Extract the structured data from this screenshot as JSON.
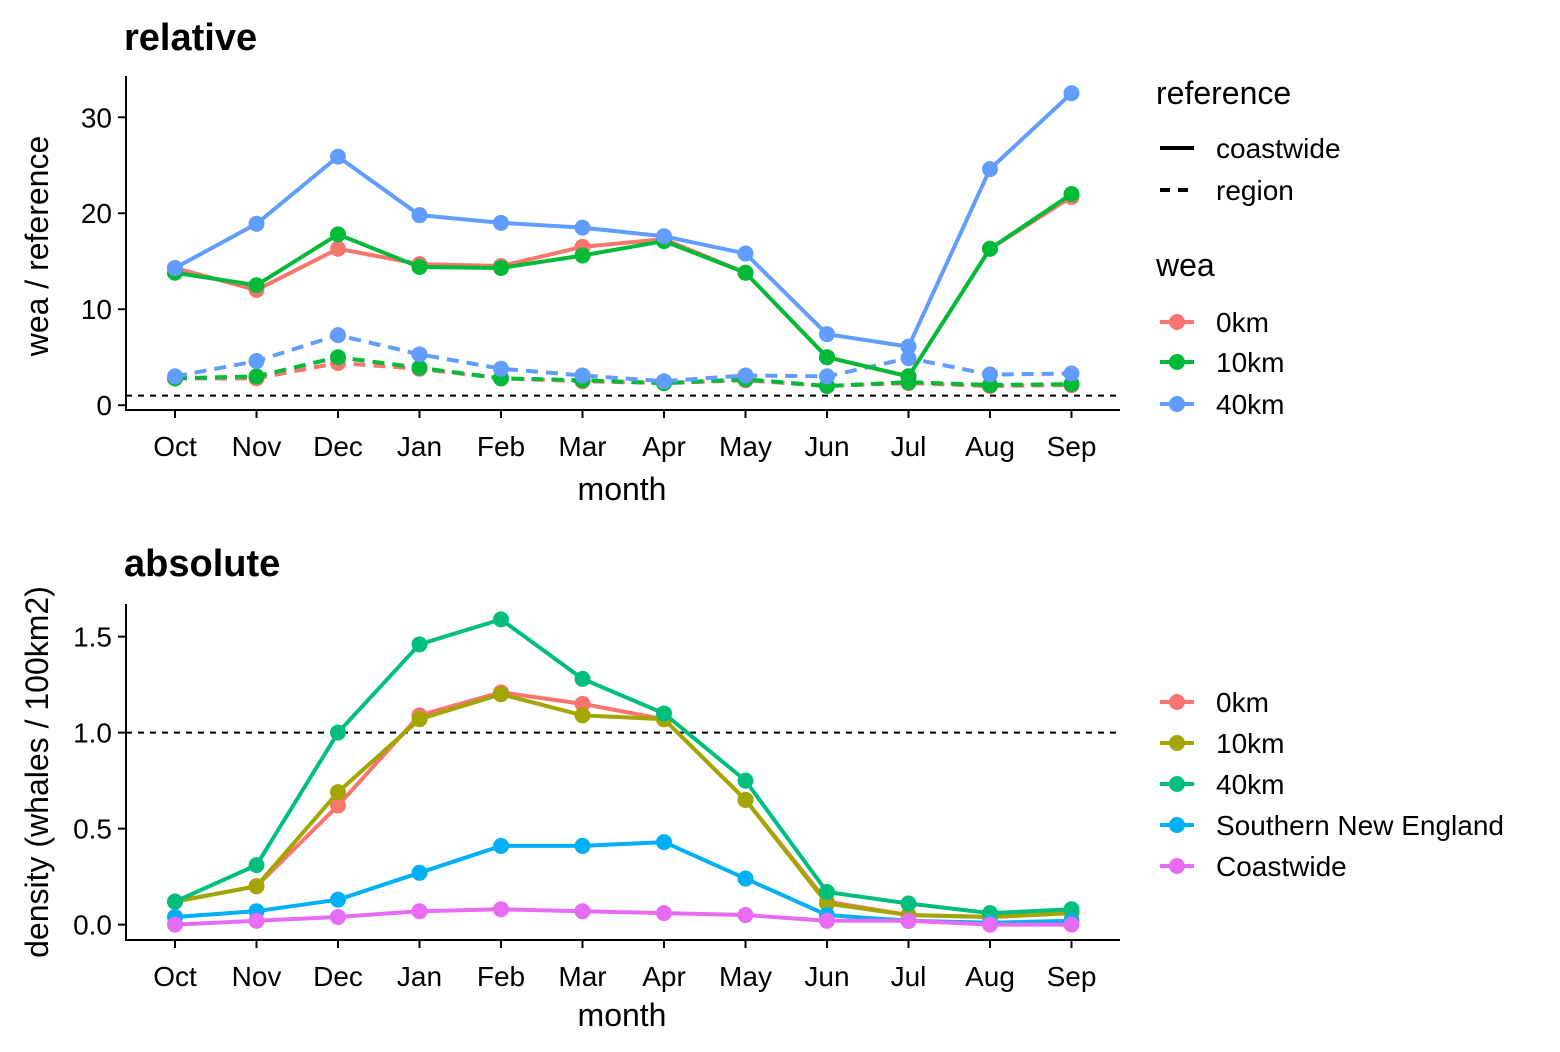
{
  "chart_data": [
    {
      "type": "line",
      "title": "relative",
      "xlabel": "month",
      "ylabel": "wea / reference",
      "categories": [
        "Oct",
        "Nov",
        "Dec",
        "Jan",
        "Feb",
        "Mar",
        "Apr",
        "May",
        "Jun",
        "Jul",
        "Aug",
        "Sep"
      ],
      "ylim": [
        -0.5,
        34.3
      ],
      "yticks": [
        0,
        10,
        20,
        30
      ],
      "reference_line": 1,
      "grid": false,
      "legend_position": "right",
      "linetype_legend": {
        "title": "reference",
        "entries": [
          "coastwide",
          "region"
        ]
      },
      "color_legend": {
        "title": "wea",
        "entries": [
          "0km",
          "10km",
          "40km"
        ]
      },
      "series": [
        {
          "name": "0km",
          "reference": "coastwide",
          "color": "#F8766D",
          "values": [
            14.3,
            12.0,
            16.3,
            14.7,
            14.5,
            16.5,
            17.3,
            13.8,
            5.0,
            3.0,
            16.3,
            21.7
          ]
        },
        {
          "name": "10km",
          "reference": "coastwide",
          "color": "#00BA38",
          "values": [
            13.8,
            12.5,
            17.8,
            14.4,
            14.3,
            15.6,
            17.1,
            13.8,
            5.0,
            3.0,
            16.3,
            22.0
          ]
        },
        {
          "name": "40km",
          "reference": "coastwide",
          "color": "#619CFF",
          "values": [
            14.3,
            18.9,
            25.9,
            19.8,
            19.0,
            18.5,
            17.6,
            15.8,
            7.4,
            6.1,
            24.6,
            32.5
          ]
        },
        {
          "name": "0km",
          "reference": "region",
          "color": "#F8766D",
          "values": [
            2.8,
            2.8,
            4.4,
            3.8,
            2.8,
            2.5,
            2.3,
            2.6,
            2.0,
            2.3,
            2.0,
            2.1
          ]
        },
        {
          "name": "10km",
          "reference": "region",
          "color": "#00BA38",
          "values": [
            2.8,
            3.0,
            5.0,
            3.9,
            2.8,
            2.6,
            2.3,
            2.7,
            2.0,
            2.4,
            2.1,
            2.2
          ]
        },
        {
          "name": "40km",
          "reference": "region",
          "color": "#619CFF",
          "values": [
            3.0,
            4.6,
            7.3,
            5.3,
            3.8,
            3.1,
            2.5,
            3.1,
            3.0,
            4.9,
            3.2,
            3.3
          ]
        }
      ]
    },
    {
      "type": "line",
      "title": "absolute",
      "xlabel": "month",
      "ylabel": "density (whales / 100km2)",
      "categories": [
        "Oct",
        "Nov",
        "Dec",
        "Jan",
        "Feb",
        "Mar",
        "Apr",
        "May",
        "Jun",
        "Jul",
        "Aug",
        "Sep"
      ],
      "ylim": [
        -0.08,
        1.67
      ],
      "yticks": [
        "0.0",
        "0.5",
        "1.0",
        "1.5"
      ],
      "reference_line": 1,
      "grid": false,
      "legend_position": "right",
      "series": [
        {
          "name": "0km",
          "color": "#F8766D",
          "values": [
            0.12,
            0.2,
            0.62,
            1.09,
            1.21,
            1.15,
            1.07,
            0.65,
            0.12,
            0.05,
            0.04,
            0.06
          ]
        },
        {
          "name": "10km",
          "color": "#A3A500",
          "values": [
            0.12,
            0.2,
            0.69,
            1.07,
            1.2,
            1.09,
            1.07,
            0.65,
            0.11,
            0.05,
            0.04,
            0.06
          ]
        },
        {
          "name": "40km",
          "color": "#00BF7D",
          "values": [
            0.12,
            0.31,
            1.0,
            1.46,
            1.59,
            1.28,
            1.1,
            0.75,
            0.17,
            0.11,
            0.06,
            0.08
          ]
        },
        {
          "name": "Southern New England",
          "color": "#00B0F6",
          "values": [
            0.04,
            0.07,
            0.13,
            0.27,
            0.41,
            0.41,
            0.43,
            0.24,
            0.05,
            0.02,
            0.01,
            0.02
          ]
        },
        {
          "name": "Coastwide",
          "color": "#E76BF3",
          "values": [
            0.0,
            0.02,
            0.04,
            0.07,
            0.08,
            0.07,
            0.06,
            0.05,
            0.02,
            0.02,
            0.0,
            0.0
          ]
        }
      ]
    }
  ]
}
